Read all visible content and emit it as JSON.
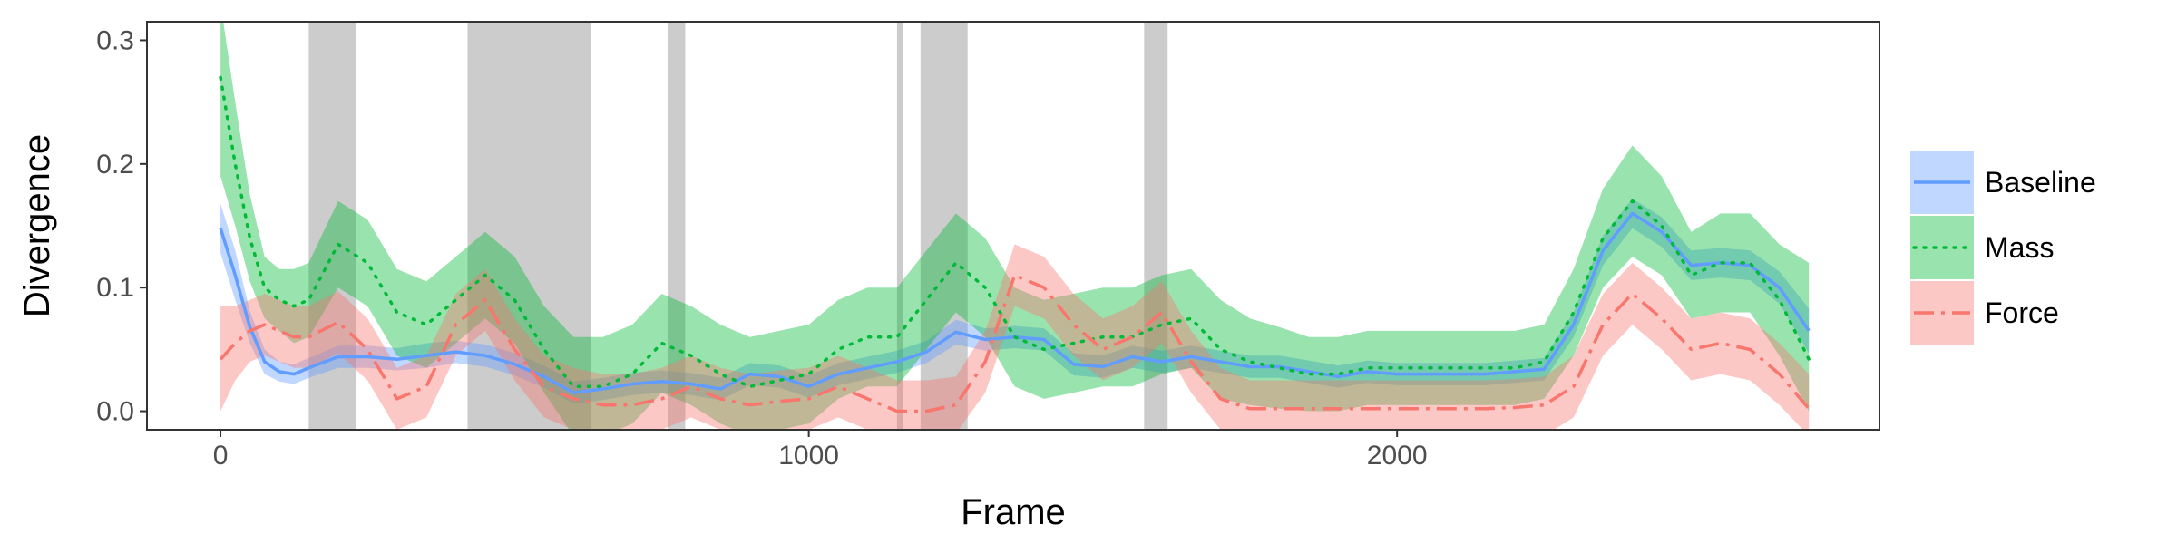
{
  "chart_data": {
    "type": "line",
    "title": "",
    "xlabel": "Frame",
    "ylabel": "Divergence",
    "xlim": [
      -125,
      2820
    ],
    "ylim": [
      -0.015,
      0.315
    ],
    "xticks": [
      0,
      1000,
      2000
    ],
    "xtick_labels": [
      "0",
      "1000",
      "2000"
    ],
    "yticks": [
      0.0,
      0.1,
      0.2,
      0.3
    ],
    "ytick_labels": [
      "0.0",
      "0.1",
      "0.2",
      "0.3"
    ],
    "grid": false,
    "legend_position": "right",
    "shaded_regions": [
      [
        150,
        230
      ],
      [
        420,
        630
      ],
      [
        760,
        790
      ],
      [
        1150,
        1160
      ],
      [
        1190,
        1270
      ],
      [
        1570,
        1610
      ]
    ],
    "shaded_region_color": "#cccccc",
    "series": [
      {
        "name": "Baseline",
        "color": "#619CFF",
        "linestyle": "solid",
        "points": [
          [
            0,
            0.148,
            0.128,
            0.168
          ],
          [
            25,
            0.11,
            0.09,
            0.13
          ],
          [
            50,
            0.068,
            0.055,
            0.081
          ],
          [
            75,
            0.04,
            0.03,
            0.05
          ],
          [
            100,
            0.032,
            0.024,
            0.04
          ],
          [
            125,
            0.03,
            0.022,
            0.038
          ],
          [
            150,
            0.035,
            0.027,
            0.043
          ],
          [
            200,
            0.044,
            0.035,
            0.053
          ],
          [
            250,
            0.044,
            0.035,
            0.053
          ],
          [
            300,
            0.042,
            0.033,
            0.051
          ],
          [
            350,
            0.045,
            0.035,
            0.055
          ],
          [
            400,
            0.048,
            0.039,
            0.057
          ],
          [
            450,
            0.045,
            0.036,
            0.054
          ],
          [
            500,
            0.038,
            0.029,
            0.047
          ],
          [
            550,
            0.028,
            0.019,
            0.037
          ],
          [
            600,
            0.015,
            0.006,
            0.024
          ],
          [
            650,
            0.018,
            0.009,
            0.027
          ],
          [
            700,
            0.022,
            0.013,
            0.031
          ],
          [
            750,
            0.024,
            0.015,
            0.033
          ],
          [
            800,
            0.022,
            0.013,
            0.031
          ],
          [
            850,
            0.018,
            0.009,
            0.027
          ],
          [
            900,
            0.03,
            0.021,
            0.039
          ],
          [
            950,
            0.028,
            0.019,
            0.037
          ],
          [
            1000,
            0.02,
            0.011,
            0.029
          ],
          [
            1050,
            0.03,
            0.021,
            0.039
          ],
          [
            1100,
            0.035,
            0.026,
            0.044
          ],
          [
            1150,
            0.04,
            0.031,
            0.049
          ],
          [
            1200,
            0.048,
            0.039,
            0.057
          ],
          [
            1250,
            0.064,
            0.054,
            0.074
          ],
          [
            1300,
            0.058,
            0.049,
            0.067
          ],
          [
            1350,
            0.06,
            0.051,
            0.069
          ],
          [
            1400,
            0.058,
            0.049,
            0.067
          ],
          [
            1450,
            0.038,
            0.029,
            0.047
          ],
          [
            1500,
            0.036,
            0.027,
            0.045
          ],
          [
            1550,
            0.044,
            0.035,
            0.053
          ],
          [
            1600,
            0.04,
            0.031,
            0.049
          ],
          [
            1650,
            0.044,
            0.035,
            0.053
          ],
          [
            1700,
            0.04,
            0.031,
            0.049
          ],
          [
            1750,
            0.036,
            0.027,
            0.045
          ],
          [
            1800,
            0.036,
            0.027,
            0.045
          ],
          [
            1850,
            0.032,
            0.023,
            0.041
          ],
          [
            1900,
            0.028,
            0.019,
            0.037
          ],
          [
            1950,
            0.032,
            0.023,
            0.041
          ],
          [
            2000,
            0.03,
            0.021,
            0.039
          ],
          [
            2050,
            0.03,
            0.021,
            0.039
          ],
          [
            2100,
            0.03,
            0.021,
            0.039
          ],
          [
            2150,
            0.03,
            0.021,
            0.039
          ],
          [
            2200,
            0.032,
            0.023,
            0.041
          ],
          [
            2250,
            0.034,
            0.025,
            0.043
          ],
          [
            2300,
            0.07,
            0.06,
            0.08
          ],
          [
            2350,
            0.13,
            0.118,
            0.142
          ],
          [
            2400,
            0.16,
            0.148,
            0.172
          ],
          [
            2450,
            0.145,
            0.133,
            0.157
          ],
          [
            2500,
            0.118,
            0.106,
            0.13
          ],
          [
            2550,
            0.12,
            0.108,
            0.132
          ],
          [
            2600,
            0.118,
            0.106,
            0.13
          ],
          [
            2650,
            0.1,
            0.087,
            0.113
          ],
          [
            2700,
            0.065,
            0.047,
            0.083
          ]
        ]
      },
      {
        "name": "Mass",
        "color": "#00BA38",
        "linestyle": "dotted",
        "points": [
          [
            0,
            0.27,
            0.19,
            0.33
          ],
          [
            25,
            0.2,
            0.15,
            0.25
          ],
          [
            50,
            0.14,
            0.105,
            0.175
          ],
          [
            75,
            0.1,
            0.075,
            0.125
          ],
          [
            100,
            0.09,
            0.065,
            0.115
          ],
          [
            125,
            0.085,
            0.055,
            0.115
          ],
          [
            150,
            0.09,
            0.06,
            0.12
          ],
          [
            200,
            0.135,
            0.1,
            0.17
          ],
          [
            250,
            0.12,
            0.085,
            0.155
          ],
          [
            300,
            0.08,
            0.045,
            0.115
          ],
          [
            350,
            0.07,
            0.035,
            0.105
          ],
          [
            400,
            0.09,
            0.055,
            0.125
          ],
          [
            450,
            0.11,
            0.075,
            0.145
          ],
          [
            500,
            0.09,
            0.055,
            0.125
          ],
          [
            550,
            0.05,
            0.015,
            0.085
          ],
          [
            600,
            0.02,
            -0.02,
            0.06
          ],
          [
            650,
            0.02,
            -0.02,
            0.06
          ],
          [
            700,
            0.03,
            -0.01,
            0.07
          ],
          [
            750,
            0.055,
            0.015,
            0.095
          ],
          [
            800,
            0.045,
            0.005,
            0.085
          ],
          [
            850,
            0.03,
            -0.01,
            0.07
          ],
          [
            900,
            0.02,
            -0.02,
            0.06
          ],
          [
            950,
            0.025,
            -0.015,
            0.065
          ],
          [
            1000,
            0.03,
            -0.01,
            0.07
          ],
          [
            1050,
            0.05,
            0.01,
            0.09
          ],
          [
            1100,
            0.06,
            0.02,
            0.1
          ],
          [
            1150,
            0.06,
            0.02,
            0.1
          ],
          [
            1200,
            0.09,
            0.05,
            0.13
          ],
          [
            1250,
            0.12,
            0.08,
            0.16
          ],
          [
            1300,
            0.1,
            0.06,
            0.14
          ],
          [
            1350,
            0.06,
            0.02,
            0.1
          ],
          [
            1400,
            0.05,
            0.01,
            0.09
          ],
          [
            1450,
            0.055,
            0.015,
            0.095
          ],
          [
            1500,
            0.06,
            0.02,
            0.1
          ],
          [
            1550,
            0.06,
            0.02,
            0.1
          ],
          [
            1600,
            0.07,
            0.03,
            0.11
          ],
          [
            1650,
            0.075,
            0.035,
            0.115
          ],
          [
            1700,
            0.05,
            0.01,
            0.09
          ],
          [
            1750,
            0.04,
            0.005,
            0.075
          ],
          [
            1800,
            0.035,
            0.002,
            0.068
          ],
          [
            1850,
            0.03,
            0.0,
            0.06
          ],
          [
            1900,
            0.03,
            0.0,
            0.06
          ],
          [
            1950,
            0.035,
            0.005,
            0.065
          ],
          [
            2000,
            0.035,
            0.005,
            0.065
          ],
          [
            2050,
            0.035,
            0.005,
            0.065
          ],
          [
            2100,
            0.035,
            0.005,
            0.065
          ],
          [
            2150,
            0.035,
            0.005,
            0.065
          ],
          [
            2200,
            0.035,
            0.005,
            0.065
          ],
          [
            2250,
            0.04,
            0.01,
            0.07
          ],
          [
            2300,
            0.08,
            0.045,
            0.115
          ],
          [
            2350,
            0.14,
            0.1,
            0.18
          ],
          [
            2400,
            0.17,
            0.125,
            0.215
          ],
          [
            2450,
            0.15,
            0.11,
            0.19
          ],
          [
            2500,
            0.11,
            0.075,
            0.145
          ],
          [
            2550,
            0.12,
            0.08,
            0.16
          ],
          [
            2600,
            0.12,
            0.08,
            0.16
          ],
          [
            2650,
            0.09,
            0.045,
            0.135
          ],
          [
            2700,
            0.042,
            0.0,
            0.12
          ]
        ]
      },
      {
        "name": "Force",
        "color": "#F8766D",
        "linestyle": "dashdot",
        "points": [
          [
            0,
            0.042,
            0.0,
            0.085
          ],
          [
            25,
            0.055,
            0.025,
            0.085
          ],
          [
            50,
            0.065,
            0.04,
            0.09
          ],
          [
            75,
            0.07,
            0.045,
            0.095
          ],
          [
            100,
            0.065,
            0.04,
            0.09
          ],
          [
            125,
            0.06,
            0.035,
            0.085
          ],
          [
            150,
            0.06,
            0.035,
            0.085
          ],
          [
            200,
            0.072,
            0.047,
            0.097
          ],
          [
            250,
            0.05,
            0.025,
            0.075
          ],
          [
            300,
            0.01,
            -0.015,
            0.035
          ],
          [
            350,
            0.02,
            -0.005,
            0.045
          ],
          [
            400,
            0.07,
            0.045,
            0.095
          ],
          [
            450,
            0.09,
            0.065,
            0.115
          ],
          [
            500,
            0.05,
            0.025,
            0.075
          ],
          [
            550,
            0.02,
            -0.005,
            0.045
          ],
          [
            600,
            0.01,
            -0.015,
            0.035
          ],
          [
            650,
            0.005,
            -0.02,
            0.03
          ],
          [
            700,
            0.005,
            -0.02,
            0.03
          ],
          [
            750,
            0.01,
            -0.015,
            0.035
          ],
          [
            800,
            0.02,
            -0.005,
            0.045
          ],
          [
            850,
            0.01,
            -0.015,
            0.035
          ],
          [
            900,
            0.005,
            -0.02,
            0.03
          ],
          [
            950,
            0.008,
            -0.017,
            0.033
          ],
          [
            1000,
            0.01,
            -0.015,
            0.035
          ],
          [
            1050,
            0.02,
            -0.005,
            0.045
          ],
          [
            1100,
            0.01,
            -0.015,
            0.035
          ],
          [
            1150,
            0.0,
            -0.02,
            0.025
          ],
          [
            1200,
            0.0,
            -0.02,
            0.025
          ],
          [
            1250,
            0.005,
            -0.018,
            0.028
          ],
          [
            1300,
            0.04,
            0.015,
            0.065
          ],
          [
            1350,
            0.11,
            0.085,
            0.135
          ],
          [
            1400,
            0.1,
            0.075,
            0.125
          ],
          [
            1450,
            0.07,
            0.045,
            0.095
          ],
          [
            1500,
            0.05,
            0.025,
            0.075
          ],
          [
            1550,
            0.06,
            0.035,
            0.085
          ],
          [
            1600,
            0.08,
            0.055,
            0.105
          ],
          [
            1650,
            0.04,
            0.015,
            0.065
          ],
          [
            1700,
            0.01,
            -0.015,
            0.035
          ],
          [
            1750,
            0.002,
            -0.02,
            0.025
          ],
          [
            1800,
            0.002,
            -0.02,
            0.025
          ],
          [
            1850,
            0.002,
            -0.02,
            0.025
          ],
          [
            1900,
            0.002,
            -0.02,
            0.025
          ],
          [
            1950,
            0.002,
            -0.02,
            0.025
          ],
          [
            2000,
            0.002,
            -0.02,
            0.025
          ],
          [
            2050,
            0.002,
            -0.02,
            0.025
          ],
          [
            2100,
            0.002,
            -0.02,
            0.025
          ],
          [
            2150,
            0.002,
            -0.02,
            0.025
          ],
          [
            2200,
            0.003,
            -0.02,
            0.026
          ],
          [
            2250,
            0.005,
            -0.02,
            0.028
          ],
          [
            2300,
            0.02,
            -0.005,
            0.045
          ],
          [
            2350,
            0.07,
            0.045,
            0.095
          ],
          [
            2400,
            0.095,
            0.07,
            0.12
          ],
          [
            2450,
            0.075,
            0.05,
            0.1
          ],
          [
            2500,
            0.05,
            0.025,
            0.075
          ],
          [
            2550,
            0.055,
            0.03,
            0.08
          ],
          [
            2600,
            0.05,
            0.025,
            0.075
          ],
          [
            2650,
            0.03,
            0.005,
            0.055
          ],
          [
            2700,
            0.002,
            -0.02,
            0.03
          ]
        ]
      }
    ]
  }
}
